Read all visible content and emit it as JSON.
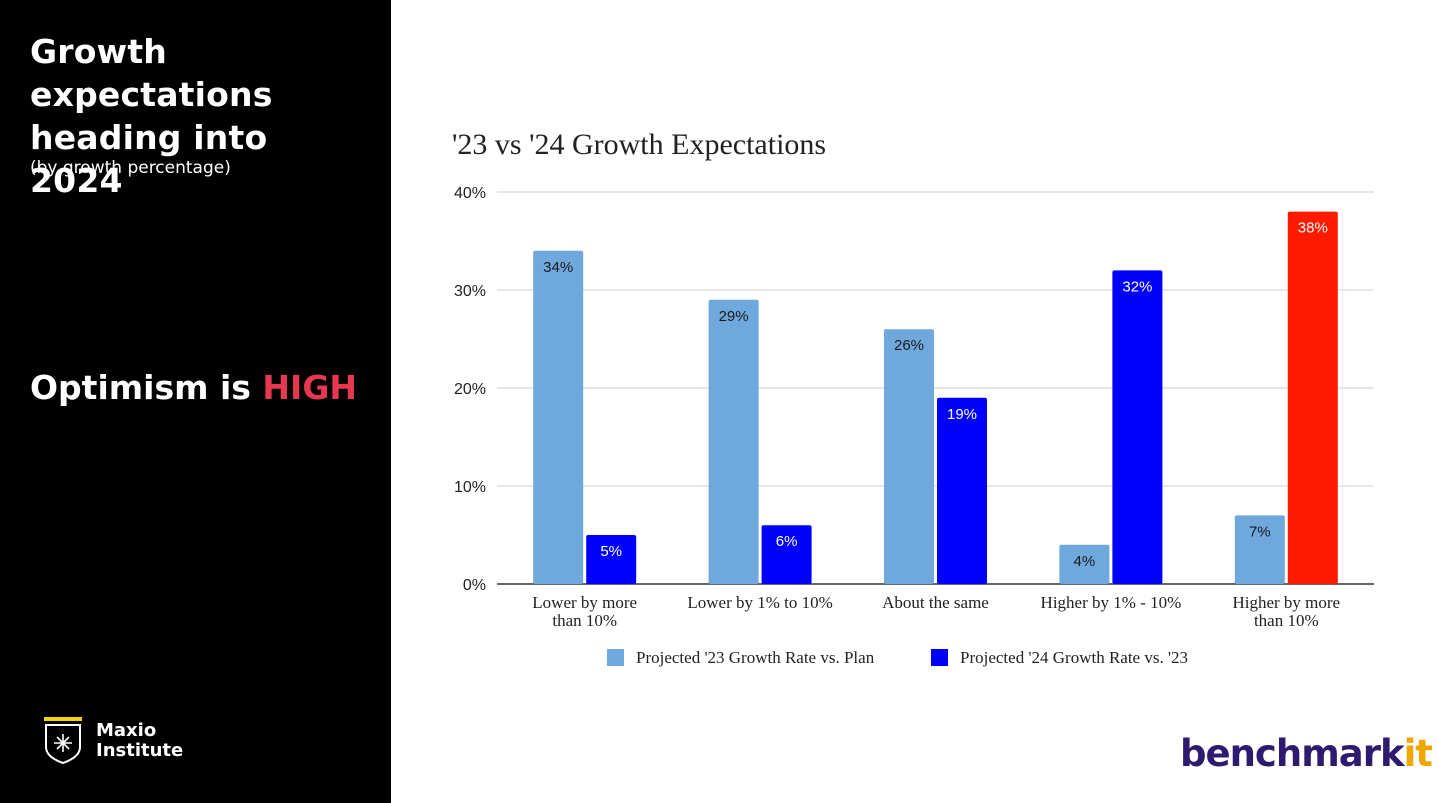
{
  "left_panel": {
    "headline": "Growth expectations heading into 2024",
    "subhead": "(by growth percentage)",
    "tagline_prefix": "Optimism is ",
    "tagline_highlight": "HIGH",
    "logo_line1": "Maxio",
    "logo_line2": "Institute"
  },
  "brand": {
    "name_main": "benchmark",
    "name_accent": "it"
  },
  "colors": {
    "series_1": "#6fa8dc",
    "series_2": "#0000ff",
    "highlight_bar": "#ff1a00",
    "accent_text": "#e8384f",
    "benchmark_purple": "#2e1a6e",
    "benchmark_orange": "#f0a500"
  },
  "chart_data": {
    "type": "bar",
    "title": "'23 vs '24 Growth Expectations",
    "xlabel": "",
    "ylabel": "",
    "categories": [
      [
        "Lower by more",
        "than 10%"
      ],
      [
        "Lower by 1% to 10%"
      ],
      [
        "About the same"
      ],
      [
        "Higher by 1% - 10%"
      ],
      [
        "Higher by more",
        "than 10%"
      ]
    ],
    "series": [
      {
        "name": "Projected '23 Growth Rate vs. Plan",
        "values": [
          34,
          29,
          26,
          4,
          7
        ],
        "labels": [
          "34%",
          "29%",
          "26%",
          "4%",
          "7%"
        ]
      },
      {
        "name": "Projected '24 Growth Rate vs. '23",
        "values": [
          5,
          6,
          19,
          32,
          38
        ],
        "labels": [
          "5%",
          "6%",
          "19%",
          "32%",
          "38%"
        ],
        "highlight_index": 4
      }
    ],
    "ylim": [
      0,
      40
    ],
    "yticks": [
      0,
      10,
      20,
      30,
      40
    ],
    "ytick_labels": [
      "0%",
      "10%",
      "20%",
      "30%",
      "40%"
    ],
    "grid": true,
    "legend_position": "bottom"
  }
}
